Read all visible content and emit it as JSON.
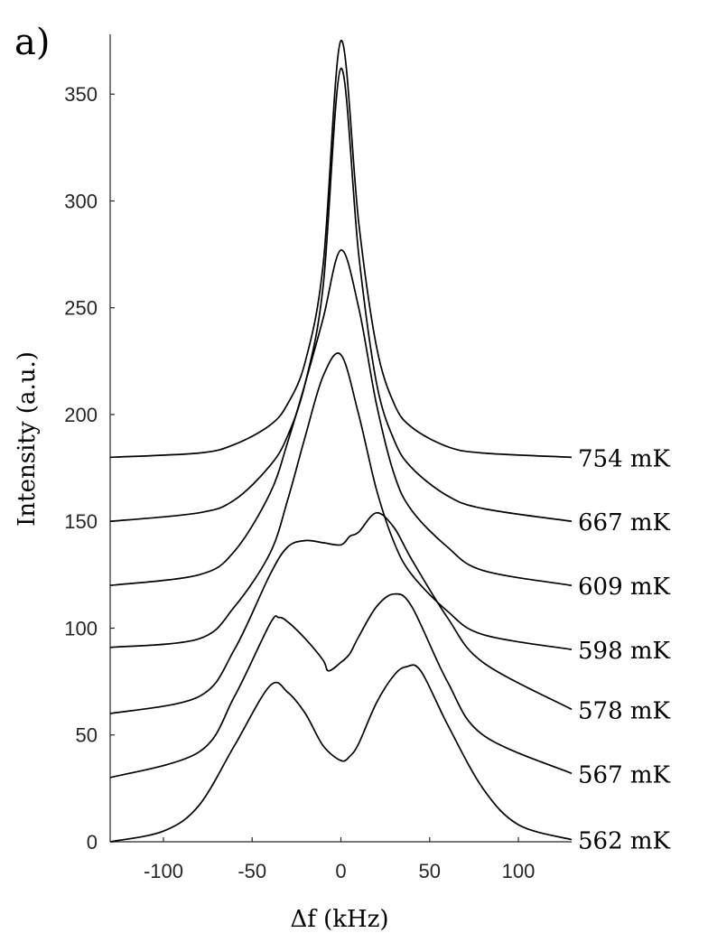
{
  "panel_label": "a)",
  "chart_data": {
    "type": "line",
    "xlabel": "Δf (kHz)",
    "ylabel": "Intensity (a.u.)",
    "xlim": [
      -130,
      130
    ],
    "ylim": [
      0,
      378
    ],
    "xticks": [
      -100,
      -50,
      0,
      50,
      100
    ],
    "yticks": [
      0,
      50,
      100,
      150,
      200,
      250,
      300,
      350
    ],
    "grid": false,
    "legend": "none",
    "series": [
      {
        "name": "754 mK",
        "x": [
          -130,
          -80,
          -60,
          -40,
          -30,
          -20,
          -10,
          0,
          10,
          20,
          30,
          40,
          60,
          80,
          130
        ],
        "y": [
          180,
          182,
          186,
          195,
          205,
          225,
          270,
          375,
          290,
          232,
          205,
          194,
          185,
          182,
          180
        ]
      },
      {
        "name": "667 mK",
        "x": [
          -130,
          -80,
          -60,
          -40,
          -30,
          -20,
          -10,
          0,
          10,
          20,
          30,
          40,
          60,
          80,
          130
        ],
        "y": [
          150,
          154,
          160,
          176,
          190,
          215,
          260,
          362,
          275,
          215,
          188,
          175,
          162,
          156,
          150
        ]
      },
      {
        "name": "609 mK",
        "x": [
          -130,
          -80,
          -60,
          -40,
          -30,
          -20,
          -10,
          0,
          10,
          20,
          30,
          40,
          60,
          80,
          130
        ],
        "y": [
          120,
          125,
          136,
          163,
          187,
          215,
          245,
          277,
          250,
          205,
          172,
          155,
          138,
          127,
          120
        ]
      },
      {
        "name": "598 mK",
        "x": [
          -130,
          -80,
          -60,
          -40,
          -30,
          -20,
          -10,
          0,
          10,
          20,
          30,
          40,
          60,
          80,
          130
        ],
        "y": [
          91,
          95,
          110,
          135,
          160,
          190,
          218,
          228,
          200,
          165,
          140,
          125,
          108,
          97,
          90
        ]
      },
      {
        "name": "578 mK",
        "x": [
          -130,
          -80,
          -60,
          -40,
          -30,
          -20,
          -10,
          0,
          5,
          10,
          20,
          30,
          40,
          60,
          80,
          130
        ],
        "y": [
          60,
          68,
          90,
          125,
          138,
          141,
          140,
          139,
          143,
          145,
          154,
          147,
          132,
          105,
          84,
          62
        ]
      },
      {
        "name": "567 mK",
        "x": [
          -130,
          -80,
          -60,
          -40,
          -35,
          -30,
          -20,
          -10,
          -7,
          0,
          5,
          10,
          20,
          30,
          40,
          60,
          80,
          130
        ],
        "y": [
          30,
          42,
          68,
          102,
          105,
          103,
          95,
          85,
          80,
          84,
          88,
          96,
          110,
          116,
          110,
          75,
          50,
          32
        ]
      },
      {
        "name": "562 mK",
        "x": [
          -130,
          -100,
          -80,
          -60,
          -40,
          -30,
          -20,
          -10,
          0,
          5,
          10,
          20,
          30,
          37,
          45,
          60,
          80,
          100,
          130
        ],
        "y": [
          0,
          5,
          17,
          45,
          73,
          70,
          60,
          45,
          38,
          40,
          46,
          65,
          78,
          82,
          80,
          55,
          25,
          8,
          1
        ]
      }
    ]
  }
}
